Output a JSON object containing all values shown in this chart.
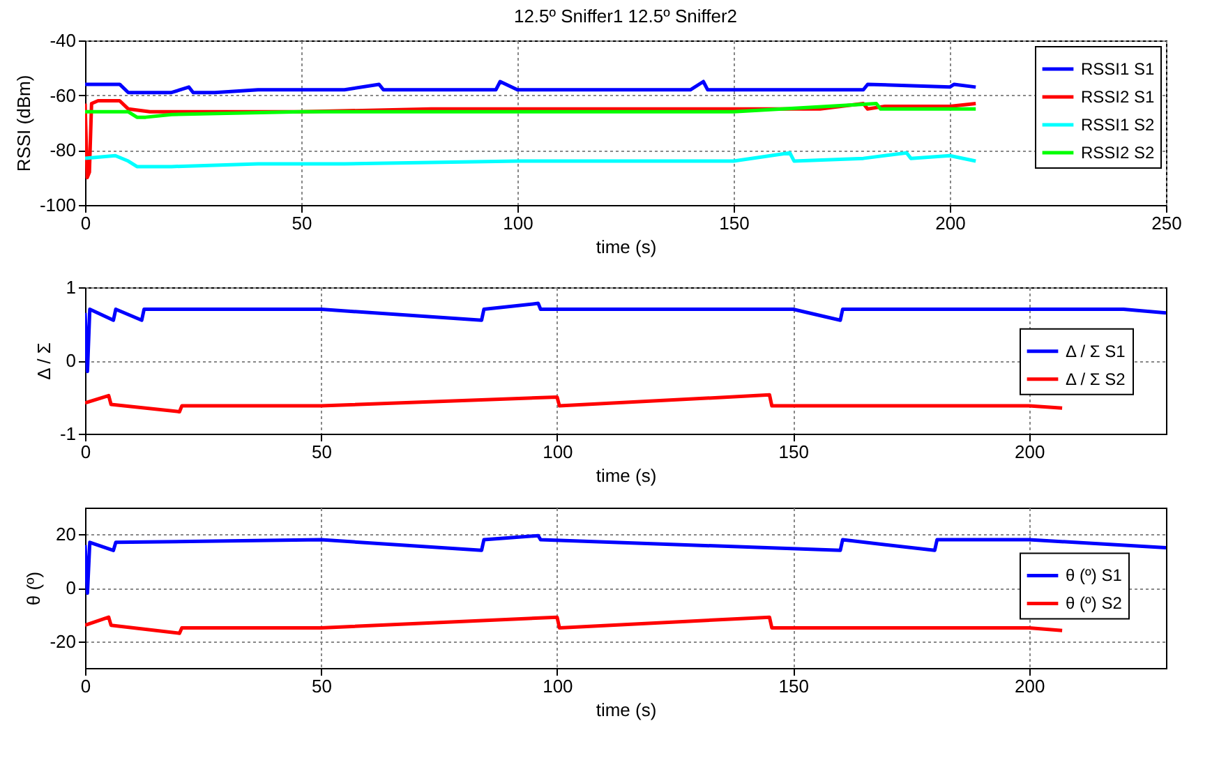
{
  "chart_data": [
    {
      "type": "line",
      "title": "12.5º Sniffer1 12.5º Sniffer2",
      "xlabel": "time (s)",
      "ylabel": "RSSI (dBm)",
      "xlim": [
        0,
        250
      ],
      "xticks": [
        0,
        50,
        100,
        150,
        200,
        250
      ],
      "ylim": [
        -100,
        -40
      ],
      "yticks": [
        -100,
        -80,
        -60,
        -40
      ],
      "grid": true,
      "legend": "top right",
      "series": [
        {
          "name": "RSSI1 S1",
          "color": "#0000ff",
          "x": [
            0,
            0.5,
            1,
            8,
            10,
            12,
            20,
            24,
            25,
            30,
            40,
            45,
            60,
            68,
            69,
            80,
            95,
            96,
            100,
            120,
            140,
            143,
            144,
            160,
            180,
            181,
            200,
            201,
            206
          ],
          "values": [
            -56,
            -56,
            -56,
            -56,
            -59,
            -59,
            -59,
            -57,
            -59,
            -59,
            -58,
            -58,
            -58,
            -56,
            -58,
            -58,
            -58,
            -55,
            -58,
            -58,
            -58,
            -55,
            -58,
            -58,
            -58,
            -56,
            -57,
            -56,
            -57
          ]
        },
        {
          "name": "RSSI2 S1",
          "color": "#ff0000",
          "x": [
            0,
            0.5,
            1,
            1.5,
            3,
            8,
            10,
            15,
            30,
            50,
            80,
            100,
            120,
            150,
            170,
            180,
            181,
            185,
            200,
            206
          ],
          "values": [
            -63,
            -90,
            -88,
            -63,
            -62,
            -62,
            -65,
            -66,
            -66,
            -66,
            -65,
            -65,
            -65,
            -65,
            -65,
            -63,
            -65,
            -64,
            -64,
            -63
          ]
        },
        {
          "name": "RSSI1 S2",
          "color": "#00ffff",
          "x": [
            0,
            7,
            10,
            12,
            20,
            40,
            60,
            100,
            150,
            163,
            164,
            180,
            190,
            191,
            200,
            206
          ],
          "values": [
            -83,
            -82,
            -84,
            -86,
            -86,
            -85,
            -85,
            -84,
            -84,
            -81,
            -84,
            -83,
            -81,
            -83,
            -82,
            -84
          ]
        },
        {
          "name": "RSSI2 S2",
          "color": "#00ff00",
          "x": [
            0,
            10,
            12,
            14,
            20,
            50,
            100,
            150,
            183,
            184,
            200,
            206
          ],
          "values": [
            -66,
            -66,
            -68,
            -68,
            -67,
            -66,
            -66,
            -66,
            -63,
            -65,
            -65,
            -65
          ]
        }
      ]
    },
    {
      "type": "line",
      "xlabel": "time (s)",
      "ylabel": "Δ / Σ",
      "xlim": [
        0,
        229
      ],
      "xticks": [
        0,
        50,
        100,
        150,
        200
      ],
      "ylim": [
        -1,
        1
      ],
      "yticks": [
        -1,
        0,
        1
      ],
      "grid": true,
      "legend": "right",
      "series": [
        {
          "name": "Δ / Σ S1",
          "color": "#0000ff",
          "x": [
            0,
            0.5,
            1,
            6,
            6.5,
            12,
            12.5,
            50,
            84,
            84.5,
            96,
            96.5,
            150,
            160,
            160.5,
            200,
            220,
            229
          ],
          "values": [
            0.65,
            -0.15,
            0.7,
            0.55,
            0.7,
            0.55,
            0.7,
            0.7,
            0.55,
            0.7,
            0.78,
            0.7,
            0.7,
            0.55,
            0.7,
            0.7,
            0.7,
            0.65
          ]
        },
        {
          "name": "Δ / Σ S2",
          "color": "#ff0000",
          "x": [
            0,
            5,
            5.5,
            20,
            20.5,
            50,
            100,
            100.5,
            145,
            145.5,
            200,
            207
          ],
          "values": [
            -0.58,
            -0.48,
            -0.6,
            -0.7,
            -0.62,
            -0.62,
            -0.5,
            -0.62,
            -0.47,
            -0.62,
            -0.62,
            -0.65
          ]
        }
      ]
    },
    {
      "type": "line",
      "xlabel": "time (s)",
      "ylabel": "θ (º)",
      "xlim": [
        0,
        229
      ],
      "xticks": [
        0,
        50,
        100,
        150,
        200
      ],
      "ylim": [
        -30,
        30
      ],
      "yticks": [
        -20,
        0,
        20
      ],
      "grid": true,
      "legend": "right",
      "series": [
        {
          "name": "θ (º) S1",
          "color": "#0000ff",
          "x": [
            0,
            0.5,
            1,
            6,
            6.5,
            50,
            84,
            84.5,
            96,
            96.5,
            160,
            160.5,
            180,
            180.5,
            200,
            229
          ],
          "values": [
            16,
            -2,
            17,
            14,
            17,
            18,
            14,
            18,
            19.5,
            18,
            14,
            18,
            14,
            18,
            18,
            15
          ]
        },
        {
          "name": "θ (º) S2",
          "color": "#ff0000",
          "x": [
            0,
            5,
            5.5,
            20,
            20.5,
            50,
            100,
            100.5,
            145,
            145.5,
            200,
            207
          ],
          "values": [
            -14,
            -11,
            -14,
            -17,
            -15,
            -15,
            -11,
            -15,
            -11,
            -15,
            -15,
            -16
          ]
        }
      ]
    }
  ]
}
